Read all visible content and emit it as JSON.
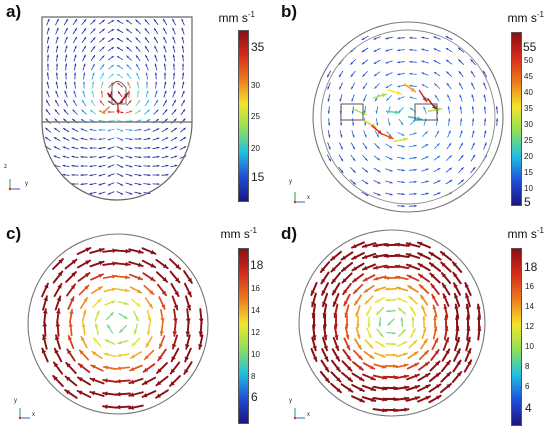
{
  "panels": {
    "a": {
      "letter": "a)",
      "unit_base": "mm s",
      "unit_exp": "-1",
      "ticks": [
        "35",
        "30",
        "25",
        "20",
        "15"
      ],
      "axis_labels": [
        "z",
        "y"
      ],
      "colorbar_range": [
        12,
        38
      ]
    },
    "b": {
      "letter": "b)",
      "unit_base": "mm s",
      "unit_exp": "-1",
      "ticks": [
        "55",
        "50",
        "45",
        "40",
        "35",
        "30",
        "25",
        "20",
        "15",
        "10",
        "5"
      ],
      "axis_labels": [
        "y",
        "x"
      ],
      "colorbar_range": [
        5,
        57
      ]
    },
    "c": {
      "letter": "c)",
      "unit_base": "mm s",
      "unit_exp": "-1",
      "ticks": [
        "18",
        "16",
        "14",
        "12",
        "10",
        "8",
        "6"
      ],
      "axis_labels": [
        "y",
        "x"
      ],
      "colorbar_range": [
        5,
        19
      ]
    },
    "d": {
      "letter": "d)",
      "unit_base": "mm s",
      "unit_exp": "-1",
      "ticks": [
        "18",
        "16",
        "14",
        "12",
        "10",
        "8",
        "6",
        "4"
      ],
      "axis_labels": [
        "y",
        "x"
      ],
      "colorbar_range": [
        3,
        19
      ]
    }
  },
  "colors": {
    "low": "#1a1680",
    "mid_low": "#20c0e0",
    "mid": "#f2e52a",
    "high": "#d62c1b",
    "max": "#8a0f14",
    "outline": "#777777"
  }
}
